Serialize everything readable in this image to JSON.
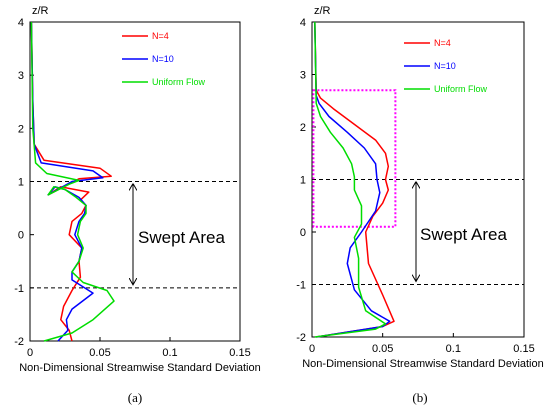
{
  "colors": {
    "n4": "#ff0000",
    "n10": "#0000ff",
    "uniform": "#00dd00",
    "box": "#ff00ff",
    "axis": "#000000"
  },
  "chart_data": [
    {
      "type": "line",
      "panel_label": "(a)",
      "ylabel": "z/R",
      "xlabel": "Non-Dimensional Streamwise Standard Deviation",
      "xlim": [
        0,
        0.15
      ],
      "ylim": [
        -2,
        4
      ],
      "xticks": [
        "0",
        "0.05",
        "0.1",
        "0.15"
      ],
      "yticks": [
        "4",
        "3",
        "2",
        "1",
        "0",
        "-1",
        "-2"
      ],
      "legend_position": "top-right",
      "annotation": "Swept Area",
      "hlines": [
        1,
        -1
      ],
      "series": [
        {
          "name": "N=4",
          "color": "n4",
          "x": [
            0.03,
            0.028,
            0.022,
            0.024,
            0.03,
            0.036,
            0.035,
            0.037,
            0.028,
            0.03,
            0.037,
            0.04,
            0.036,
            0.042,
            0.032,
            0.022,
            0.013,
            0.035,
            0.058,
            0.05,
            0.01,
            0.003,
            0.002,
            0.001
          ],
          "y": [
            -2,
            -1.8,
            -1.6,
            -1.35,
            -1.05,
            -0.8,
            -0.5,
            -0.25,
            0,
            0.25,
            0.4,
            0.55,
            0.65,
            0.8,
            0.85,
            0.9,
            0.75,
            1.05,
            1.1,
            1.25,
            1.4,
            1.7,
            2.5,
            4
          ]
        },
        {
          "name": "N=10",
          "color": "n10",
          "x": [
            0.02,
            0.027,
            0.026,
            0.03,
            0.045,
            0.03,
            0.03,
            0.035,
            0.037,
            0.032,
            0.035,
            0.039,
            0.04,
            0.035,
            0.025,
            0.018,
            0.013,
            0.03,
            0.052,
            0.045,
            0.008,
            0.003,
            0.002,
            0.001
          ],
          "y": [
            -2,
            -1.8,
            -1.6,
            -1.4,
            -1.1,
            -0.85,
            -0.7,
            -0.5,
            -0.25,
            0,
            0.25,
            0.4,
            0.55,
            0.7,
            0.85,
            0.9,
            0.75,
            1.0,
            1.07,
            1.2,
            1.35,
            1.7,
            2.5,
            4
          ]
        },
        {
          "name": "Uniform Flow",
          "color": "uniform",
          "x": [
            0.01,
            0.03,
            0.045,
            0.06,
            0.055,
            0.038,
            0.03,
            0.035,
            0.038,
            0.034,
            0.036,
            0.04,
            0.04,
            0.033,
            0.025,
            0.017,
            0.013,
            0.028,
            0.035,
            0.012,
            0.004,
            0.002,
            0.001
          ],
          "y": [
            -2,
            -1.85,
            -1.6,
            -1.25,
            -1.05,
            -0.9,
            -0.7,
            -0.5,
            -0.25,
            0,
            0.25,
            0.4,
            0.55,
            0.7,
            0.85,
            0.9,
            0.75,
            0.95,
            1.02,
            1.15,
            1.35,
            2.0,
            4
          ]
        }
      ]
    },
    {
      "type": "line",
      "panel_label": "(b)",
      "ylabel": "z/R",
      "xlabel": "Non-Dimensional Streamwise Standard Deviation",
      "xlim": [
        0,
        0.15
      ],
      "ylim": [
        -2,
        4
      ],
      "xticks": [
        "0",
        "0.05",
        "0.1",
        "0.15"
      ],
      "yticks": [
        "4",
        "3",
        "2",
        "1",
        "0",
        "-1",
        "-2"
      ],
      "legend_position": "top-right",
      "annotation": "Swept Area",
      "hlines": [
        1,
        -1
      ],
      "highlight_box": {
        "x": [
          0.001,
          0.059
        ],
        "y": [
          0.1,
          2.7
        ]
      },
      "series": [
        {
          "name": "N=4",
          "color": "n4",
          "x": [
            0.003,
            0.05,
            0.058,
            0.05,
            0.04,
            0.038,
            0.043,
            0.05,
            0.054,
            0.052,
            0.054,
            0.052,
            0.045,
            0.03,
            0.015,
            0.006,
            0.003,
            0.002
          ],
          "y": [
            -2,
            -1.8,
            -1.7,
            -1.2,
            -0.6,
            0,
            0.3,
            0.55,
            0.8,
            1.0,
            1.25,
            1.5,
            1.75,
            2.05,
            2.35,
            2.55,
            2.7,
            4
          ]
        },
        {
          "name": "N=10",
          "color": "n10",
          "x": [
            0.003,
            0.05,
            0.055,
            0.042,
            0.03,
            0.025,
            0.027,
            0.035,
            0.045,
            0.048,
            0.046,
            0.045,
            0.037,
            0.025,
            0.012,
            0.005,
            0.003,
            0.002
          ],
          "y": [
            -2,
            -1.8,
            -1.7,
            -1.5,
            -1.1,
            -0.6,
            -0.3,
            0,
            0.4,
            0.75,
            1.0,
            1.3,
            1.6,
            1.9,
            2.2,
            2.45,
            2.6,
            4
          ]
        },
        {
          "name": "Uniform Flow",
          "color": "uniform",
          "x": [
            0.002,
            0.045,
            0.052,
            0.038,
            0.033,
            0.033,
            0.03,
            0.035,
            0.035,
            0.03,
            0.03,
            0.028,
            0.022,
            0.013,
            0.006,
            0.003,
            0.002
          ],
          "y": [
            -2,
            -1.85,
            -1.75,
            -1.5,
            -1.05,
            -0.5,
            -0.1,
            0.15,
            0.5,
            0.8,
            1.05,
            1.3,
            1.6,
            1.9,
            2.2,
            2.45,
            4
          ]
        }
      ]
    }
  ]
}
